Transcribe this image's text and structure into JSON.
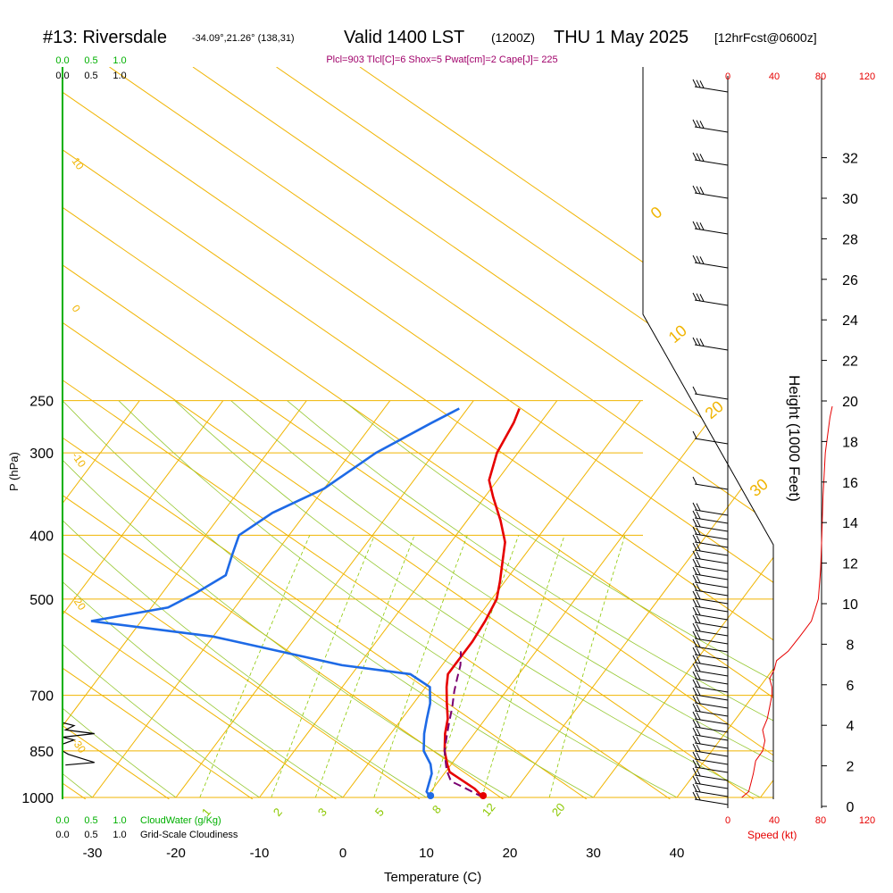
{
  "header": {
    "station": "#13: Riversdale",
    "coords": "-34.09°,21.26° (138,31)",
    "valid": "Valid 1400 LST",
    "zulu": "(1200Z)",
    "date": "THU 1 May 2025",
    "fcst": "[12hrFcst@0600z]",
    "params": "Plcl=903 Tlcl[C]=6 Shox=5 Pwat[cm]=2 Cape[J]= 225"
  },
  "colors": {
    "temperature": "#e60000",
    "dewpoint": "#1e6ae6",
    "parcel": "#7a0070",
    "isotherm": "#f0b400",
    "mixing_ratio": "#8cc800",
    "adiabat": "#96c832",
    "cloud": "#00b000",
    "speed": "#e60000"
  },
  "chart_data": {
    "type": "line",
    "xlabel": "Temperature (C)",
    "ylabel": "P (hPa)",
    "x_ticks": [
      "-30",
      "-20",
      "-10",
      "0",
      "10",
      "20",
      "30",
      "40"
    ],
    "y_ticks": [
      "250",
      "300",
      "400",
      "500",
      "700",
      "850",
      "1000"
    ],
    "right_axis_label": "Height (1000 Feet)",
    "right_ticks": [
      "0",
      "2",
      "4",
      "6",
      "8",
      "10",
      "12",
      "14",
      "16",
      "18",
      "20",
      "22",
      "24",
      "26",
      "28",
      "30",
      "32"
    ],
    "cloud_label": "CloudWater (g/Kg)",
    "cloudiness_label": "Grid-Scale Cloudiness",
    "cloud_ticks": [
      "0.0",
      "0.5",
      "1.0"
    ],
    "speed_label": "Speed (kt)",
    "speed_ticks": [
      "0",
      "40",
      "80",
      "120"
    ],
    "isotherm_labels": [
      "10",
      "0",
      "-10",
      "-20",
      "-30",
      "0",
      "10",
      "20",
      "30"
    ],
    "mixing_labels": [
      "1",
      "2",
      "3",
      "5",
      "8",
      "12",
      "20"
    ],
    "series": [
      {
        "name": "Temperature",
        "points": [
          [
            16.8,
            1000
          ],
          [
            15,
            970
          ],
          [
            13,
            945
          ],
          [
            10.5,
            915
          ],
          [
            9.5,
            890
          ],
          [
            8,
            850
          ],
          [
            6.5,
            800
          ],
          [
            5.5,
            760
          ],
          [
            4,
            720
          ],
          [
            2.5,
            680
          ],
          [
            1.5,
            650
          ],
          [
            1.5,
            610
          ],
          [
            1.5,
            580
          ],
          [
            1.2,
            540
          ],
          [
            0.6,
            500
          ],
          [
            -0.6,
            470
          ],
          [
            -2,
            440
          ],
          [
            -3.5,
            410
          ],
          [
            -6,
            380
          ],
          [
            -9,
            350
          ],
          [
            -11,
            330
          ],
          [
            -12.5,
            300
          ],
          [
            -13.2,
            270
          ],
          [
            -13.8,
            257
          ]
        ]
      },
      {
        "name": "Dewpoint",
        "points": [
          [
            10.5,
            1000
          ],
          [
            9.5,
            980
          ],
          [
            9,
            950
          ],
          [
            8.5,
            920
          ],
          [
            7.5,
            890
          ],
          [
            5.5,
            850
          ],
          [
            4,
            800
          ],
          [
            3,
            760
          ],
          [
            2,
            720
          ],
          [
            0.5,
            680
          ],
          [
            -3,
            650
          ],
          [
            -12,
            630
          ],
          [
            -30,
            570
          ],
          [
            -46,
            540
          ],
          [
            -38,
            515
          ],
          [
            -36,
            490
          ],
          [
            -34,
            460
          ],
          [
            -35,
            430
          ],
          [
            -36,
            400
          ],
          [
            -34,
            370
          ],
          [
            -30,
            340
          ],
          [
            -27,
            300
          ],
          [
            -23,
            270
          ],
          [
            -21,
            257
          ]
        ]
      },
      {
        "name": "Parcel",
        "points": [
          [
            16.8,
            1000
          ],
          [
            14,
            970
          ],
          [
            11.5,
            945
          ],
          [
            10,
            910
          ],
          [
            9,
            880
          ],
          [
            8,
            850
          ],
          [
            7,
            810
          ],
          [
            6,
            770
          ],
          [
            5,
            730
          ],
          [
            3.8,
            690
          ],
          [
            3,
            660
          ],
          [
            2.2,
            630
          ],
          [
            1,
            600
          ]
        ]
      }
    ],
    "cloud_profile": [
      [
        0,
        770
      ],
      [
        0.2,
        778
      ],
      [
        0.05,
        790
      ],
      [
        0.55,
        800
      ],
      [
        0,
        810
      ],
      [
        0.2,
        818
      ],
      [
        0,
        830
      ]
    ],
    "cloud_profile2": [
      [
        0,
        850
      ],
      [
        0.1,
        860
      ],
      [
        0.55,
        885
      ],
      [
        0.05,
        893
      ]
    ],
    "speed_profile": [
      [
        12,
        1000
      ],
      [
        18,
        980
      ],
      [
        20,
        950
      ],
      [
        22,
        920
      ],
      [
        24,
        880
      ],
      [
        30,
        850
      ],
      [
        32,
        820
      ],
      [
        30,
        790
      ],
      [
        34,
        760
      ],
      [
        36,
        730
      ],
      [
        38,
        700
      ],
      [
        38,
        680
      ],
      [
        36,
        660
      ],
      [
        40,
        640
      ],
      [
        42,
        620
      ],
      [
        52,
        600
      ],
      [
        62,
        570
      ],
      [
        72,
        540
      ],
      [
        78,
        500
      ],
      [
        80,
        450
      ],
      [
        81,
        400
      ],
      [
        82,
        350
      ],
      [
        84,
        300
      ],
      [
        88,
        265
      ],
      [
        90,
        255
      ]
    ]
  }
}
